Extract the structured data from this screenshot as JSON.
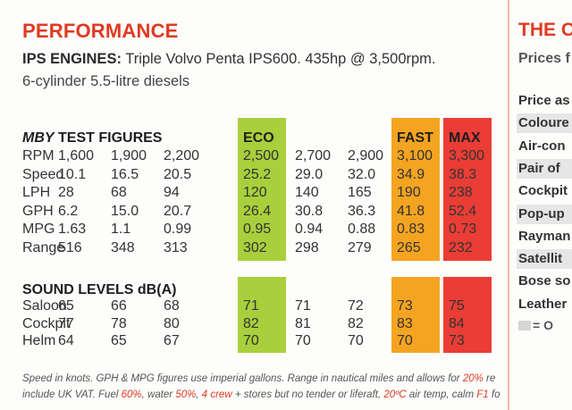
{
  "performance": {
    "title": "PERFORMANCE",
    "engines_label": "IPS ENGINES:",
    "engines_text": "Triple Volvo Penta IPS600. 435hp @ 3,500rpm.",
    "engines_line2": "6-cylinder 5.5-litre diesels"
  },
  "test_figures": {
    "title_italic": "MBY",
    "title_rest": "TEST FIGURES",
    "col_headers": [
      "",
      "",
      "",
      "ECO",
      "",
      "",
      "FAST",
      "MAX"
    ],
    "rows": [
      {
        "label": "RPM",
        "values": [
          "1,600",
          "1,900",
          "2,200",
          "2,500",
          "2,700",
          "2,900",
          "3,100",
          "3,300"
        ]
      },
      {
        "label": "Speed",
        "values": [
          "10.1",
          "16.5",
          "20.5",
          "25.2",
          "29.0",
          "32.0",
          "34.9",
          "38.3"
        ]
      },
      {
        "label": "LPH",
        "values": [
          "28",
          "68",
          "94",
          "120",
          "140",
          "165",
          "190",
          "238"
        ]
      },
      {
        "label": "GPH",
        "values": [
          "6.2",
          "15.0",
          "20.7",
          "26.4",
          "30.8",
          "36.3",
          "41.8",
          "52.4"
        ]
      },
      {
        "label": "MPG",
        "values": [
          "1.63",
          "1.1",
          "0.99",
          "0.95",
          "0.94",
          "0.88",
          "0.83",
          "0.73"
        ]
      },
      {
        "label": "Range",
        "values": [
          "516",
          "348",
          "313",
          "302",
          "298",
          "279",
          "265",
          "232"
        ]
      }
    ]
  },
  "sound_levels": {
    "title": "SOUND LEVELS dB(A)",
    "rows": [
      {
        "label": "Saloon",
        "values": [
          "65",
          "66",
          "68",
          "71",
          "71",
          "72",
          "73",
          "75"
        ]
      },
      {
        "label": "Cockpit",
        "values": [
          "77",
          "78",
          "80",
          "82",
          "81",
          "82",
          "83",
          "84"
        ]
      },
      {
        "label": "Helm",
        "values": [
          "64",
          "65",
          "67",
          "70",
          "70",
          "70",
          "70",
          "73"
        ]
      }
    ]
  },
  "band_colors": {
    "eco": "#a9cf3c",
    "fast": "#f4a421",
    "max": "#ea3d35"
  },
  "footnote": {
    "line1_a": "Speed in knots. GPH & MPG figures use imperial gallons. Range in nautical miles and allows for ",
    "line1_hl": "20%",
    "line1_b": " re",
    "line2_a": "include UK VAT. Fuel ",
    "line2_hl1": "60%",
    "line2_b": ", water ",
    "line2_hl2": "50%",
    "line2_c": ", ",
    "line2_hl3": "4 crew",
    "line2_d": " + stores but no tender or liferaft, ",
    "line2_hl4": "20ºC",
    "line2_e": " air temp, calm ",
    "line2_hl5": "F1",
    "line2_f": " fo"
  },
  "sidebar": {
    "title": "THE C",
    "subtitle": "Prices f",
    "items": [
      "Price as",
      "Coloure",
      "Air-con",
      "Pair of",
      "Cockpit",
      "Pop-up",
      "Rayman",
      "Satellit",
      "Bose so",
      "Leather"
    ],
    "key_text": "= O"
  }
}
